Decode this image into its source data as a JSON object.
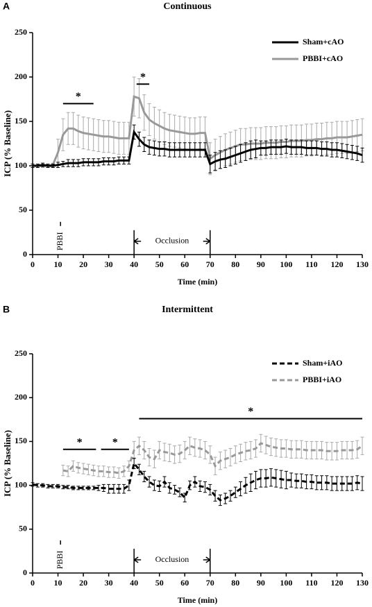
{
  "chart_data": [
    {
      "type": "line",
      "label": "A",
      "title": "Continuous",
      "xlabel": "Time (min)",
      "ylabel": "ICP (% Baseline)",
      "x": [
        0,
        2,
        4,
        6,
        8,
        10,
        12,
        14,
        16,
        18,
        20,
        22,
        24,
        26,
        28,
        30,
        32,
        34,
        36,
        38,
        40,
        42,
        44,
        46,
        48,
        50,
        52,
        54,
        56,
        58,
        60,
        62,
        64,
        66,
        68,
        70,
        72,
        74,
        76,
        78,
        80,
        82,
        84,
        86,
        88,
        90,
        92,
        94,
        96,
        98,
        100,
        102,
        104,
        106,
        108,
        110,
        112,
        114,
        116,
        118,
        120,
        122,
        124,
        126,
        128,
        130
      ],
      "series": [
        {
          "name": "Sham+cAO",
          "color": "#000000",
          "line_style": "solid",
          "values": [
            100,
            100,
            101,
            100,
            100,
            101,
            102,
            103,
            103,
            103,
            104,
            104,
            104,
            104,
            105,
            105,
            105,
            106,
            106,
            106,
            138,
            130,
            124,
            121,
            120,
            119,
            119,
            118,
            118,
            118,
            118,
            118,
            118,
            118,
            118,
            102,
            105,
            107,
            108,
            110,
            112,
            114,
            116,
            118,
            119,
            120,
            120,
            121,
            121,
            121,
            122,
            121,
            121,
            121,
            120,
            120,
            120,
            119,
            119,
            118,
            118,
            117,
            116,
            115,
            114,
            112
          ],
          "errors": [
            2,
            2,
            2,
            2,
            2,
            3,
            3,
            4,
            4,
            4,
            4,
            4,
            4,
            4,
            4,
            4,
            4,
            4,
            4,
            4,
            8,
            8,
            8,
            8,
            8,
            8,
            8,
            8,
            8,
            8,
            8,
            8,
            8,
            8,
            8,
            10,
            10,
            10,
            10,
            10,
            10,
            10,
            10,
            10,
            10,
            8,
            8,
            8,
            8,
            8,
            8,
            8,
            8,
            8,
            8,
            8,
            8,
            8,
            8,
            8,
            8,
            8,
            8,
            8,
            8,
            8
          ]
        },
        {
          "name": "PBBI+cAO",
          "color": "#999999",
          "line_style": "solid",
          "values": [
            100,
            100,
            100,
            100,
            101,
            115,
            135,
            142,
            142,
            139,
            137,
            136,
            135,
            134,
            133,
            133,
            132,
            131,
            131,
            131,
            178,
            176,
            160,
            152,
            148,
            145,
            142,
            140,
            139,
            138,
            137,
            136,
            136,
            137,
            137,
            108,
            112,
            115,
            118,
            120,
            122,
            124,
            124,
            125,
            125,
            125,
            126,
            126,
            126,
            127,
            127,
            128,
            128,
            128,
            129,
            129,
            130,
            130,
            131,
            131,
            132,
            132,
            132,
            133,
            134,
            135
          ],
          "errors": [
            2,
            2,
            2,
            2,
            2,
            15,
            18,
            18,
            18,
            18,
            18,
            18,
            18,
            18,
            18,
            18,
            18,
            18,
            18,
            18,
            22,
            22,
            20,
            18,
            18,
            18,
            18,
            18,
            18,
            18,
            18,
            18,
            18,
            18,
            18,
            18,
            18,
            18,
            18,
            18,
            18,
            18,
            18,
            18,
            18,
            18,
            18,
            18,
            18,
            18,
            18,
            18,
            18,
            18,
            18,
            18,
            18,
            18,
            18,
            18,
            18,
            18,
            18,
            18,
            18,
            18
          ]
        }
      ],
      "xlim": [
        0,
        130
      ],
      "ylim": [
        0,
        250
      ],
      "xticks": [
        0,
        10,
        20,
        30,
        40,
        50,
        60,
        70,
        80,
        90,
        100,
        110,
        120,
        130
      ],
      "yticks": [
        0,
        50,
        100,
        150,
        200,
        250
      ],
      "legend": "upper right",
      "annotations": [
        {
          "text": "*",
          "x": [
            12,
            24
          ],
          "y": 170
        },
        {
          "text": "*",
          "x": [
            41,
            46
          ],
          "y": 192
        },
        {
          "text": "PBBI",
          "x": [
            11,
            11
          ],
          "y": 15
        },
        {
          "text": "Occlusion",
          "x": [
            40,
            70
          ],
          "y": 15
        }
      ]
    },
    {
      "type": "line",
      "label": "B",
      "title": "Intermittent",
      "xlabel": "Time (min)",
      "ylabel": "ICP (% Baseline)",
      "x": [
        0,
        2,
        4,
        6,
        8,
        10,
        12,
        14,
        16,
        18,
        20,
        22,
        24,
        26,
        28,
        30,
        32,
        34,
        36,
        38,
        40,
        42,
        44,
        46,
        48,
        50,
        52,
        54,
        56,
        58,
        60,
        62,
        64,
        66,
        68,
        70,
        72,
        74,
        76,
        78,
        80,
        82,
        84,
        86,
        88,
        90,
        92,
        94,
        96,
        98,
        100,
        102,
        104,
        106,
        108,
        110,
        112,
        114,
        116,
        118,
        120,
        122,
        124,
        126,
        128,
        130
      ],
      "series": [
        {
          "name": "Sham+iAO",
          "color": "#000000",
          "line_style": "dashed",
          "values": [
            101,
            100,
            100,
            99,
            99,
            99,
            98,
            98,
            97,
            97,
            97,
            97,
            97,
            97,
            97,
            96,
            96,
            96,
            96,
            100,
            125,
            118,
            110,
            104,
            100,
            99,
            104,
            97,
            95,
            92,
            86,
            100,
            104,
            99,
            98,
            95,
            88,
            83,
            85,
            88,
            92,
            96,
            100,
            103,
            106,
            108,
            108,
            109,
            108,
            107,
            106,
            106,
            105,
            105,
            104,
            104,
            103,
            103,
            103,
            102,
            102,
            102,
            102,
            102,
            103,
            102
          ],
          "errors": [
            2,
            2,
            2,
            2,
            2,
            2,
            2,
            2,
            2,
            2,
            2,
            2,
            2,
            3,
            4,
            5,
            5,
            5,
            5,
            6,
            6,
            6,
            6,
            6,
            6,
            6,
            6,
            6,
            5,
            5,
            5,
            5,
            6,
            6,
            6,
            6,
            6,
            6,
            6,
            6,
            6,
            8,
            9,
            10,
            10,
            10,
            10,
            10,
            10,
            10,
            10,
            8,
            8,
            8,
            8,
            8,
            8,
            8,
            8,
            8,
            8,
            8,
            8,
            8,
            8,
            8
          ]
        },
        {
          "name": "PBBI+iAO",
          "color": "#999999",
          "line_style": "dashed",
          "values": [
            null,
            null,
            null,
            null,
            null,
            null,
            117,
            116,
            122,
            120,
            119,
            118,
            117,
            116,
            116,
            115,
            115,
            114,
            116,
            122,
            140,
            145,
            140,
            132,
            130,
            140,
            138,
            137,
            135,
            136,
            140,
            145,
            143,
            142,
            140,
            135,
            122,
            128,
            130,
            132,
            135,
            137,
            139,
            140,
            142,
            148,
            146,
            144,
            143,
            142,
            142,
            141,
            141,
            141,
            140,
            140,
            140,
            140,
            139,
            139,
            139,
            140,
            140,
            140,
            141,
            145
          ],
          "errors": [
            null,
            null,
            null,
            null,
            null,
            null,
            6,
            6,
            6,
            6,
            6,
            6,
            6,
            6,
            6,
            6,
            6,
            6,
            6,
            6,
            10,
            10,
            10,
            10,
            10,
            10,
            10,
            10,
            10,
            10,
            10,
            10,
            10,
            10,
            10,
            10,
            10,
            10,
            10,
            10,
            10,
            10,
            10,
            10,
            10,
            10,
            10,
            10,
            10,
            10,
            10,
            10,
            10,
            10,
            10,
            10,
            10,
            10,
            10,
            10,
            10,
            10,
            10,
            10,
            10,
            10
          ]
        }
      ],
      "xlim": [
        0,
        130
      ],
      "ylim": [
        0,
        250
      ],
      "xticks": [
        0,
        10,
        20,
        30,
        40,
        50,
        60,
        70,
        80,
        90,
        100,
        110,
        120,
        130
      ],
      "yticks": [
        0,
        50,
        100,
        150,
        200,
        250
      ],
      "legend": "upper right",
      "annotations": [
        {
          "text": "*",
          "x": [
            12,
            25
          ],
          "y": 141
        },
        {
          "text": "*",
          "x": [
            27,
            38
          ],
          "y": 141
        },
        {
          "text": "*",
          "x": [
            42,
            130
          ],
          "y": 176
        },
        {
          "text": "PBBI",
          "x": [
            11,
            11
          ],
          "y": 15
        },
        {
          "text": "Occlusion",
          "x": [
            40,
            70
          ],
          "y": 15
        }
      ]
    }
  ]
}
